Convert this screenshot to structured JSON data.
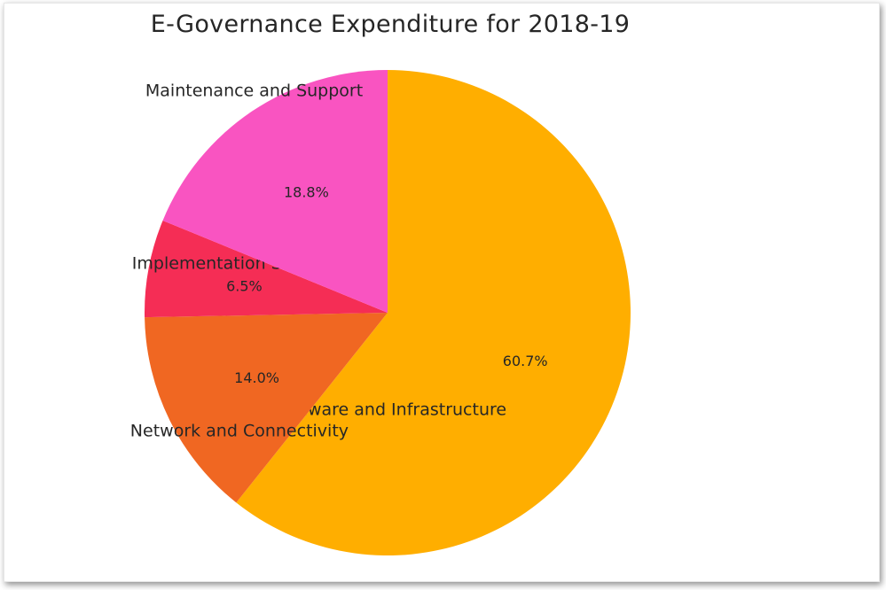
{
  "chart_data": {
    "type": "pie",
    "title": "E-Governance Expenditure for 2018-19",
    "start_angle_deg": 270,
    "direction": "clockwise",
    "slices": [
      {
        "label": "Hardware and Infrastructure",
        "value": 60.7,
        "pct_label": "60.7%",
        "color": "#FFAE00"
      },
      {
        "label": "Network and Connectivity",
        "value": 14.0,
        "pct_label": "14.0%",
        "color": "#F06722"
      },
      {
        "label": "Implementation Services",
        "value": 6.5,
        "pct_label": "6.5%",
        "color": "#F52D55"
      },
      {
        "label": "Maintenance and Support",
        "value": 18.8,
        "pct_label": "18.8%",
        "color": "#F954C1"
      }
    ]
  }
}
